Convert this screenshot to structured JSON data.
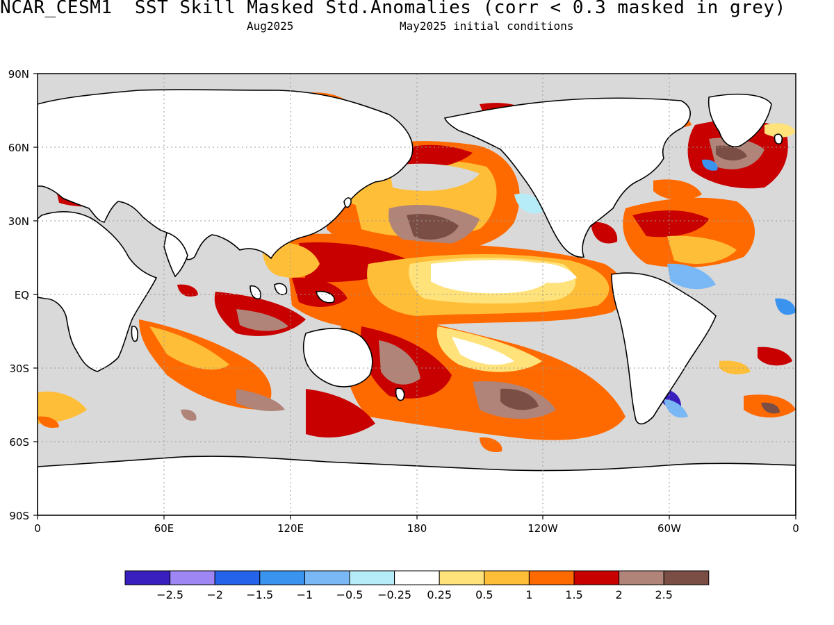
{
  "header": {
    "title": "NCAR_CESM1  SST Skill Masked Std.Anomalies (corr < 0.3 masked in grey)",
    "valid_month": "Aug2025",
    "init_label": "May2025 initial conditions"
  },
  "map": {
    "projection": "equirectangular, 0 to 360 longitude",
    "lat_ticks": [
      "90N",
      "60N",
      "30N",
      "EQ",
      "30S",
      "60S",
      "90S"
    ],
    "lon_ticks": [
      "0",
      "60E",
      "120E",
      "180",
      "120W",
      "60W",
      "0"
    ],
    "mask_color": "#d9d9d9",
    "land_color": "#ffffff",
    "grid_lines": "dotted"
  },
  "colorbar": {
    "colors": [
      "#3a1fbf",
      "#9f86f5",
      "#2563eb",
      "#3b93f0",
      "#7ab8f5",
      "#b6ecf7",
      "#ffffff",
      "#ffe27a",
      "#ffbe38",
      "#ff6a00",
      "#c80000",
      "#b08478",
      "#7a4e44"
    ],
    "labels": [
      "-2.5",
      "-2",
      "-1.5",
      "-1",
      "-0.5",
      "-0.25",
      "0.25",
      "0.5",
      "1",
      "1.5",
      "2",
      "2.5"
    ]
  }
}
